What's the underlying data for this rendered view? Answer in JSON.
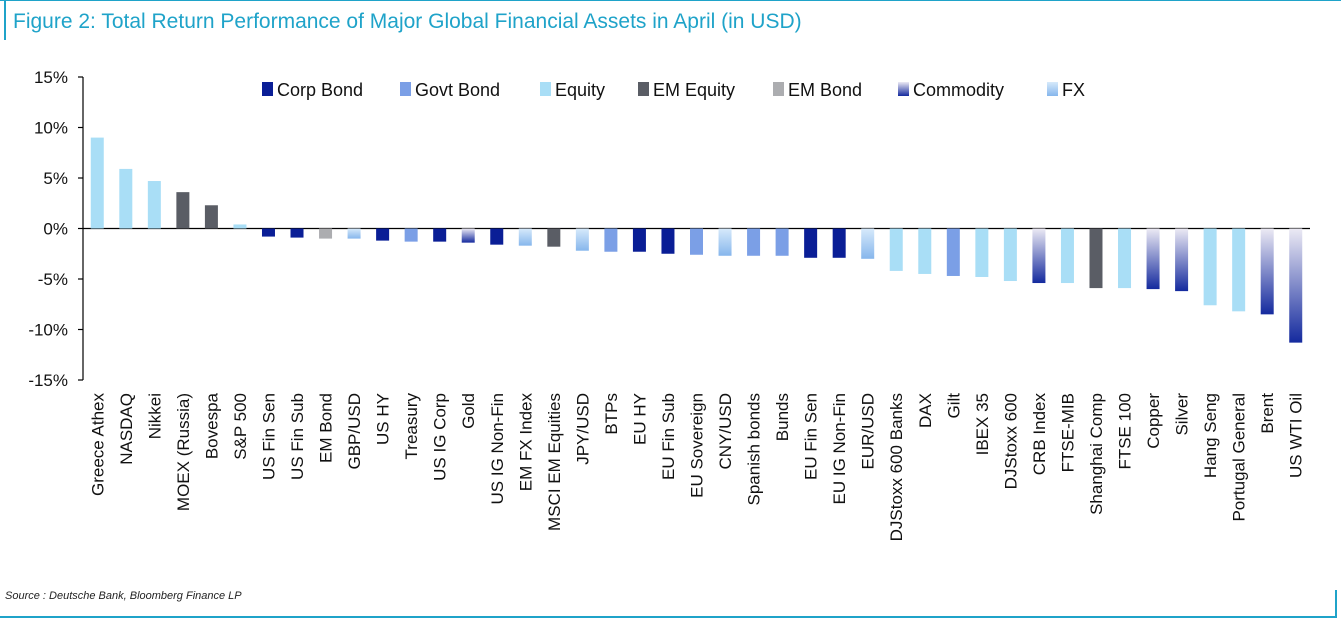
{
  "title": "Figure 2: Total Return Performance of Major Global Financial Assets in April (in USD)",
  "source": "Source : Deutsche Bank, Bloomberg Finance LP",
  "colors": {
    "Corp Bond": "#0a1e96",
    "Govt Bond": "#7b9fe6",
    "Equity": "#a9def6",
    "EM Equity": "#5a5d65",
    "EM Bond": "#acadb0",
    "Commodity": "#142a9e",
    "FX": "#9cc4f0"
  },
  "chart_data": {
    "type": "bar",
    "ylim": [
      -15,
      15
    ],
    "yticks": [
      15,
      10,
      5,
      0,
      -5,
      -10,
      -15
    ],
    "ytick_labels": [
      "15%",
      "10%",
      "5%",
      "0%",
      "-5%",
      "-10%",
      "-15%"
    ],
    "legend": [
      "Corp Bond",
      "Govt Bond",
      "Equity",
      "EM Equity",
      "EM Bond",
      "Commodity",
      "FX"
    ],
    "categories": [
      "Greece Athex",
      "NASDAQ",
      "Nikkei",
      "MOEX (Russia)",
      "Bovespa",
      "S&P 500",
      "US Fin Sen",
      "US Fin Sub",
      "EM Bond",
      "GBP/USD",
      "US HY",
      "Treasury",
      "US IG Corp",
      "Gold",
      "US IG Non-Fin",
      "EM FX Index",
      "MSCI EM Equities",
      "JPY/USD",
      "BTPs",
      "EU HY",
      "EU Fin Sub",
      "EU Sovereign",
      "CNY/USD",
      "Spanish bonds",
      "Bunds",
      "EU Fin Sen",
      "EU IG Non-Fin",
      "EUR/USD",
      "DJStoxx 600 Banks",
      "DAX",
      "Gilt",
      "IBEX 35",
      "DJStoxx 600",
      "CRB Index",
      "FTSE-MIB",
      "Shanghai Comp",
      "FTSE 100",
      "Copper",
      "Silver",
      "Hang Seng",
      "Portugal General",
      "Brent",
      "US WTI Oil"
    ],
    "values": [
      9.0,
      5.9,
      4.7,
      3.6,
      2.3,
      0.4,
      -0.8,
      -0.9,
      -1.0,
      -1.0,
      -1.2,
      -1.3,
      -1.3,
      -1.4,
      -1.6,
      -1.7,
      -1.8,
      -2.2,
      -2.3,
      -2.3,
      -2.5,
      -2.6,
      -2.7,
      -2.7,
      -2.7,
      -2.9,
      -2.9,
      -3.0,
      -4.2,
      -4.5,
      -4.7,
      -4.8,
      -5.2,
      -5.4,
      -5.4,
      -5.9,
      -5.9,
      -6.0,
      -6.2,
      -7.6,
      -8.2,
      -8.5,
      -11.3
    ],
    "groups": [
      "Equity",
      "Equity",
      "Equity",
      "EM Equity",
      "EM Equity",
      "Equity",
      "Corp Bond",
      "Corp Bond",
      "EM Bond",
      "FX",
      "Corp Bond",
      "Govt Bond",
      "Corp Bond",
      "Commodity",
      "Corp Bond",
      "FX",
      "EM Equity",
      "FX",
      "Govt Bond",
      "Corp Bond",
      "Corp Bond",
      "Govt Bond",
      "FX",
      "Govt Bond",
      "Govt Bond",
      "Corp Bond",
      "Corp Bond",
      "FX",
      "Equity",
      "Equity",
      "Govt Bond",
      "Equity",
      "Equity",
      "Commodity",
      "Equity",
      "EM Equity",
      "Equity",
      "Commodity",
      "Commodity",
      "Equity",
      "Equity",
      "Commodity",
      "Commodity"
    ]
  }
}
